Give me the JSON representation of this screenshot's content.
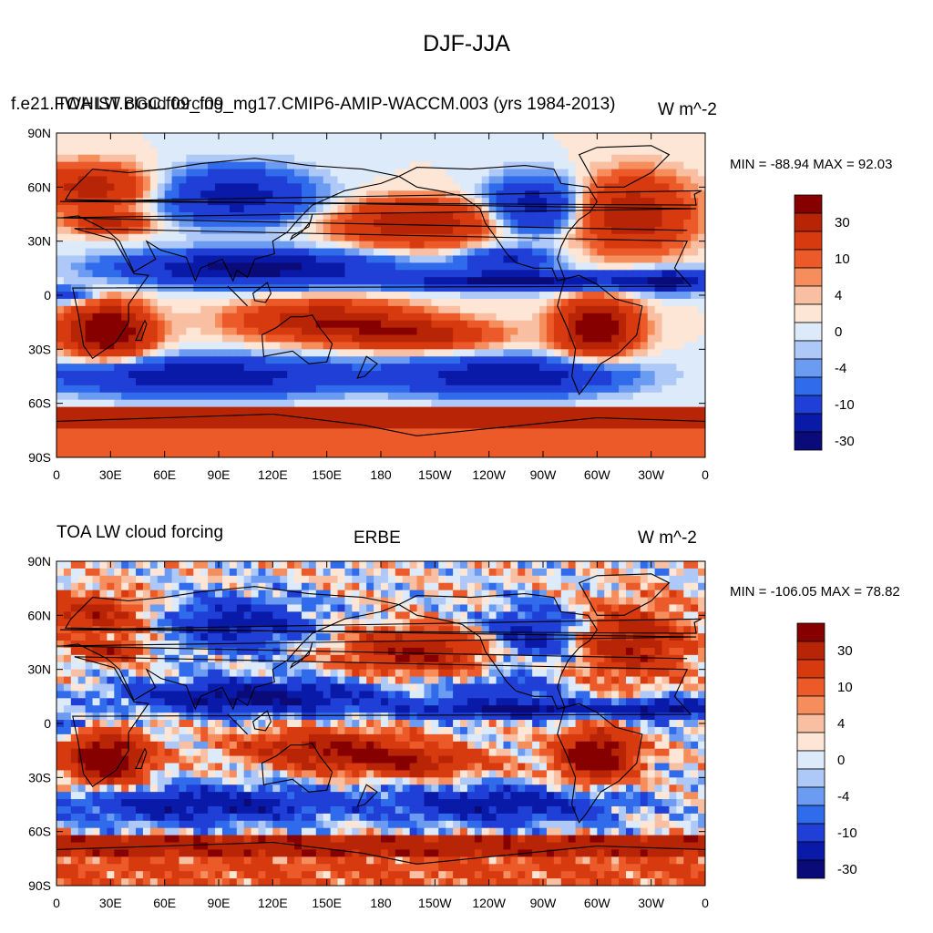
{
  "title": "DJF-JJA",
  "colors": {
    "levels": [
      "#0a0a78",
      "#0a1aa8",
      "#1f3fd6",
      "#2f6bea",
      "#6c9bf2",
      "#aec9f7",
      "#dceaf9",
      "#fde6d6",
      "#f9bfa2",
      "#f58e5c",
      "#ec5a2a",
      "#d83a10",
      "#b82406",
      "#870000"
    ],
    "land_outline": "#000000"
  },
  "colorbar": {
    "tick_labels": [
      "30",
      "10",
      "4",
      "0",
      "-4",
      "-10",
      "-30"
    ]
  },
  "chart_data": [
    {
      "type": "heatmap",
      "left_label": "f.e21.FWHIST.BGC.f09_f09_mg17.CMIP6-AMIP-WACCM.003 (yrs 1984-2013)",
      "overlap_label": "TOA LW cloud forcing",
      "units_label": "W m^-2",
      "center_label": "",
      "stats": "MIN = -88.94 MAX =  92.03",
      "xticks": [
        "0",
        "30E",
        "60E",
        "90E",
        "120E",
        "150E",
        "180",
        "150W",
        "120W",
        "90W",
        "60W",
        "30W",
        "0"
      ],
      "yticks": [
        "90N",
        "60N",
        "30N",
        "0",
        "30S",
        "60S",
        "90S"
      ],
      "xlim": [
        0,
        360
      ],
      "ylim": [
        -90,
        90
      ],
      "contour_levels": [
        -30,
        -20,
        -10,
        -6,
        -4,
        -2,
        0,
        2,
        4,
        6,
        10,
        20,
        30
      ]
    },
    {
      "type": "heatmap",
      "left_label": "TOA LW cloud forcing",
      "overlap_label": "",
      "units_label": "W m^-2",
      "center_label": "ERBE",
      "stats": "MIN = -106.05 MAX =  78.82",
      "xticks": [
        "0",
        "30E",
        "60E",
        "90E",
        "120E",
        "150E",
        "180",
        "150W",
        "120W",
        "90W",
        "60W",
        "30W",
        "0"
      ],
      "yticks": [
        "90N",
        "60N",
        "30N",
        "0",
        "30S",
        "60S",
        "90S"
      ],
      "xlim": [
        0,
        360
      ],
      "ylim": [
        -90,
        90
      ],
      "contour_levels": [
        -30,
        -20,
        -10,
        -6,
        -4,
        -2,
        0,
        2,
        4,
        6,
        10,
        20,
        30
      ]
    }
  ]
}
